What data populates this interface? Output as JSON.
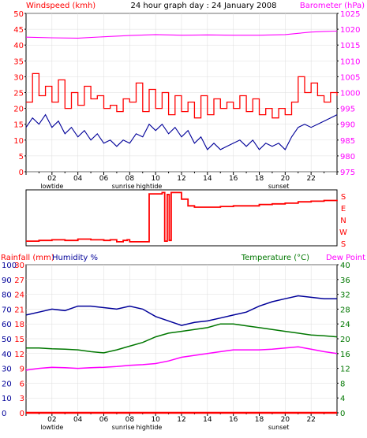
{
  "chart_data": [
    {
      "type": "line",
      "title": "24 hour graph day : 24 January 2008",
      "left_axis": {
        "label": "Windspeed (kmh)",
        "ticks": [
          "0",
          "5",
          "10",
          "15",
          "20",
          "25",
          "30",
          "35",
          "40",
          "45",
          "50"
        ],
        "ylim": [
          0,
          50
        ],
        "color": "#ff0000"
      },
      "right_axis": {
        "label": "Barometer (hPa)",
        "ticks": [
          "975",
          "980",
          "985",
          "990",
          "995",
          "1000",
          "1005",
          "1010",
          "1015",
          "1020",
          "1025"
        ],
        "ylim": [
          975,
          1025
        ],
        "color": "#ff00ff"
      },
      "x_ticks": [
        "02",
        "04",
        "06",
        "08",
        "10",
        "12",
        "14",
        "16",
        "18",
        "20",
        "22"
      ],
      "x_events": [
        "lowtide",
        "sunrise",
        "hightide",
        "sunset"
      ],
      "xlim": [
        0,
        24
      ],
      "series": [
        {
          "axis": "left",
          "color": "#ff0000",
          "x": [
            0,
            0.5,
            1,
            1.5,
            2,
            2.5,
            3,
            3.5,
            4,
            4.5,
            5,
            5.5,
            6,
            6.5,
            7,
            7.5,
            8,
            8.5,
            9,
            9.5,
            10,
            10.5,
            11,
            11.5,
            12,
            12.5,
            13,
            13.5,
            14,
            14.5,
            15,
            15.5,
            16,
            16.5,
            17,
            17.5,
            18,
            18.5,
            19,
            19.5,
            20,
            20.5,
            21,
            21.5,
            22,
            22.5,
            23,
            23.5,
            24
          ],
          "y": [
            22,
            31,
            24,
            27,
            22,
            29,
            20,
            25,
            21,
            27,
            23,
            24,
            20,
            21,
            19,
            23,
            22,
            28,
            19,
            26,
            20,
            25,
            18,
            24,
            19,
            22,
            17,
            24,
            18,
            23,
            20,
            22,
            20,
            24,
            19,
            23,
            18,
            20,
            17,
            20,
            18,
            22,
            30,
            25,
            28,
            24,
            22,
            25,
            24
          ]
        },
        {
          "axis": "left",
          "color": "#000099",
          "x": [
            0,
            0.5,
            1,
            1.5,
            2,
            2.5,
            3,
            3.5,
            4,
            4.5,
            5,
            5.5,
            6,
            6.5,
            7,
            7.5,
            8,
            8.5,
            9,
            9.5,
            10,
            10.5,
            11,
            11.5,
            12,
            12.5,
            13,
            13.5,
            14,
            14.5,
            15,
            15.5,
            16,
            16.5,
            17,
            17.5,
            18,
            18.5,
            19,
            19.5,
            20,
            20.5,
            21,
            21.5,
            22,
            22.5,
            23,
            23.5,
            24
          ],
          "y": [
            14,
            17,
            15,
            18,
            14,
            16,
            12,
            14,
            11,
            13,
            10,
            12,
            9,
            10,
            8,
            10,
            9,
            12,
            11,
            15,
            13,
            15,
            12,
            14,
            11,
            13,
            9,
            11,
            7,
            9,
            7,
            8,
            9,
            10,
            8,
            10,
            7,
            9,
            8,
            9,
            7,
            11,
            14,
            15,
            14,
            15,
            16,
            17,
            18
          ]
        },
        {
          "axis": "right",
          "color": "#ff00ff",
          "x": [
            0,
            2,
            4,
            6,
            8,
            10,
            12,
            14,
            16,
            18,
            20,
            21,
            22,
            23,
            24
          ],
          "y": [
            1017.5,
            1017.3,
            1017.2,
            1017.6,
            1018,
            1018.3,
            1018.1,
            1018.2,
            1018.1,
            1018.1,
            1018.3,
            1018.7,
            1019.1,
            1019.3,
            1019.4
          ]
        }
      ]
    },
    {
      "type": "line",
      "x_ticks": [],
      "ylabels": [
        "S",
        "E",
        "N",
        "W",
        "S"
      ],
      "xlim": [
        0,
        24
      ],
      "series": [
        {
          "color": "#ff0000",
          "x": [
            0,
            1,
            2,
            3,
            4,
            5,
            6,
            6.5,
            7,
            7.5,
            7.8,
            8,
            9.2,
            9.5,
            10.5,
            10.7,
            10.9,
            11.05,
            11.2,
            12,
            12.5,
            13,
            14,
            15,
            16,
            17,
            18,
            19,
            20,
            21,
            22,
            23,
            24
          ],
          "y": [
            0.35,
            0.4,
            0.45,
            0.4,
            0.5,
            0.45,
            0.4,
            0.45,
            0.3,
            0.4,
            0.45,
            0.3,
            0.3,
            3.9,
            4.0,
            0.35,
            3.85,
            0.4,
            4.0,
            3.5,
            3.0,
            2.9,
            2.9,
            2.95,
            3.0,
            3.0,
            3.1,
            3.15,
            3.2,
            3.3,
            3.35,
            3.4,
            3.45
          ]
        }
      ]
    },
    {
      "type": "line",
      "left_axis_rain": {
        "label": "Rainfall (mm)",
        "ticks": [
          "0",
          "3",
          "6",
          "9",
          "12",
          "15",
          "18",
          "21",
          "24",
          "27",
          "30"
        ],
        "ylim": [
          0,
          30
        ],
        "color": "#ff0000"
      },
      "left_axis_humidity": {
        "label": "Humidity %",
        "ticks": [
          "0",
          "10",
          "20",
          "30",
          "40",
          "50",
          "60",
          "70",
          "80",
          "90",
          "100"
        ],
        "ylim": [
          0,
          100
        ],
        "color": "#000099"
      },
      "right_axis": {
        "label": "Temperature (°C)",
        "ticks": [
          "0",
          "4",
          "8",
          "12",
          "16",
          "20",
          "24",
          "28",
          "32",
          "36",
          "40"
        ],
        "ylim": [
          0,
          40
        ],
        "color": "#007700"
      },
      "right_label2": "Dew Point",
      "right_label2_color": "#ff00ff",
      "x_ticks": [
        "02",
        "04",
        "06",
        "08",
        "10",
        "12",
        "14",
        "16",
        "18",
        "20",
        "22"
      ],
      "x_events": [
        "lowtide",
        "sunrise",
        "hightide",
        "sunset"
      ],
      "xlim": [
        0,
        24
      ],
      "series": [
        {
          "name": "Humidity %",
          "axis": "humidity",
          "color": "#000099",
          "x": [
            0,
            1,
            2,
            3,
            4,
            5,
            6,
            7,
            8,
            9,
            10,
            11,
            12,
            13,
            14,
            15,
            16,
            17,
            18,
            19,
            20,
            21,
            22,
            23,
            24
          ],
          "y": [
            66,
            68,
            70,
            69,
            72,
            72,
            71,
            70,
            72,
            70,
            65,
            62,
            59,
            61,
            62,
            64,
            66,
            68,
            72,
            75,
            77,
            79,
            78,
            77,
            77
          ]
        },
        {
          "name": "Temperature (°C)",
          "axis": "temperature",
          "color": "#007700",
          "x": [
            0,
            1,
            2,
            3,
            4,
            5,
            6,
            7,
            8,
            9,
            10,
            11,
            12,
            13,
            14,
            15,
            16,
            17,
            18,
            19,
            20,
            21,
            22,
            23,
            24
          ],
          "y": [
            17.5,
            17.5,
            17.3,
            17.2,
            17,
            16.5,
            16.2,
            17,
            18,
            19,
            20.5,
            21.5,
            22,
            22.5,
            23,
            24,
            24,
            23.5,
            23,
            22.5,
            22,
            21.5,
            21,
            20.8,
            20.5
          ]
        },
        {
          "name": "Dew Point",
          "axis": "temperature",
          "color": "#ff00ff",
          "x": [
            0,
            1,
            2,
            3,
            4,
            5,
            6,
            7,
            8,
            9,
            10,
            11,
            12,
            13,
            14,
            15,
            16,
            17,
            18,
            19,
            20,
            21,
            22,
            23,
            24
          ],
          "y": [
            11.5,
            12,
            12.3,
            12.2,
            12,
            12.2,
            12.3,
            12.5,
            12.8,
            13,
            13.3,
            14,
            15,
            15.5,
            16,
            16.5,
            17,
            17,
            17,
            17.2,
            17.5,
            17.8,
            17.2,
            16.5,
            16
          ]
        },
        {
          "name": "Rainfall (mm)",
          "axis": "rain",
          "color": "#ff0000",
          "x": [
            0,
            24
          ],
          "y": [
            0,
            0
          ]
        }
      ]
    }
  ]
}
